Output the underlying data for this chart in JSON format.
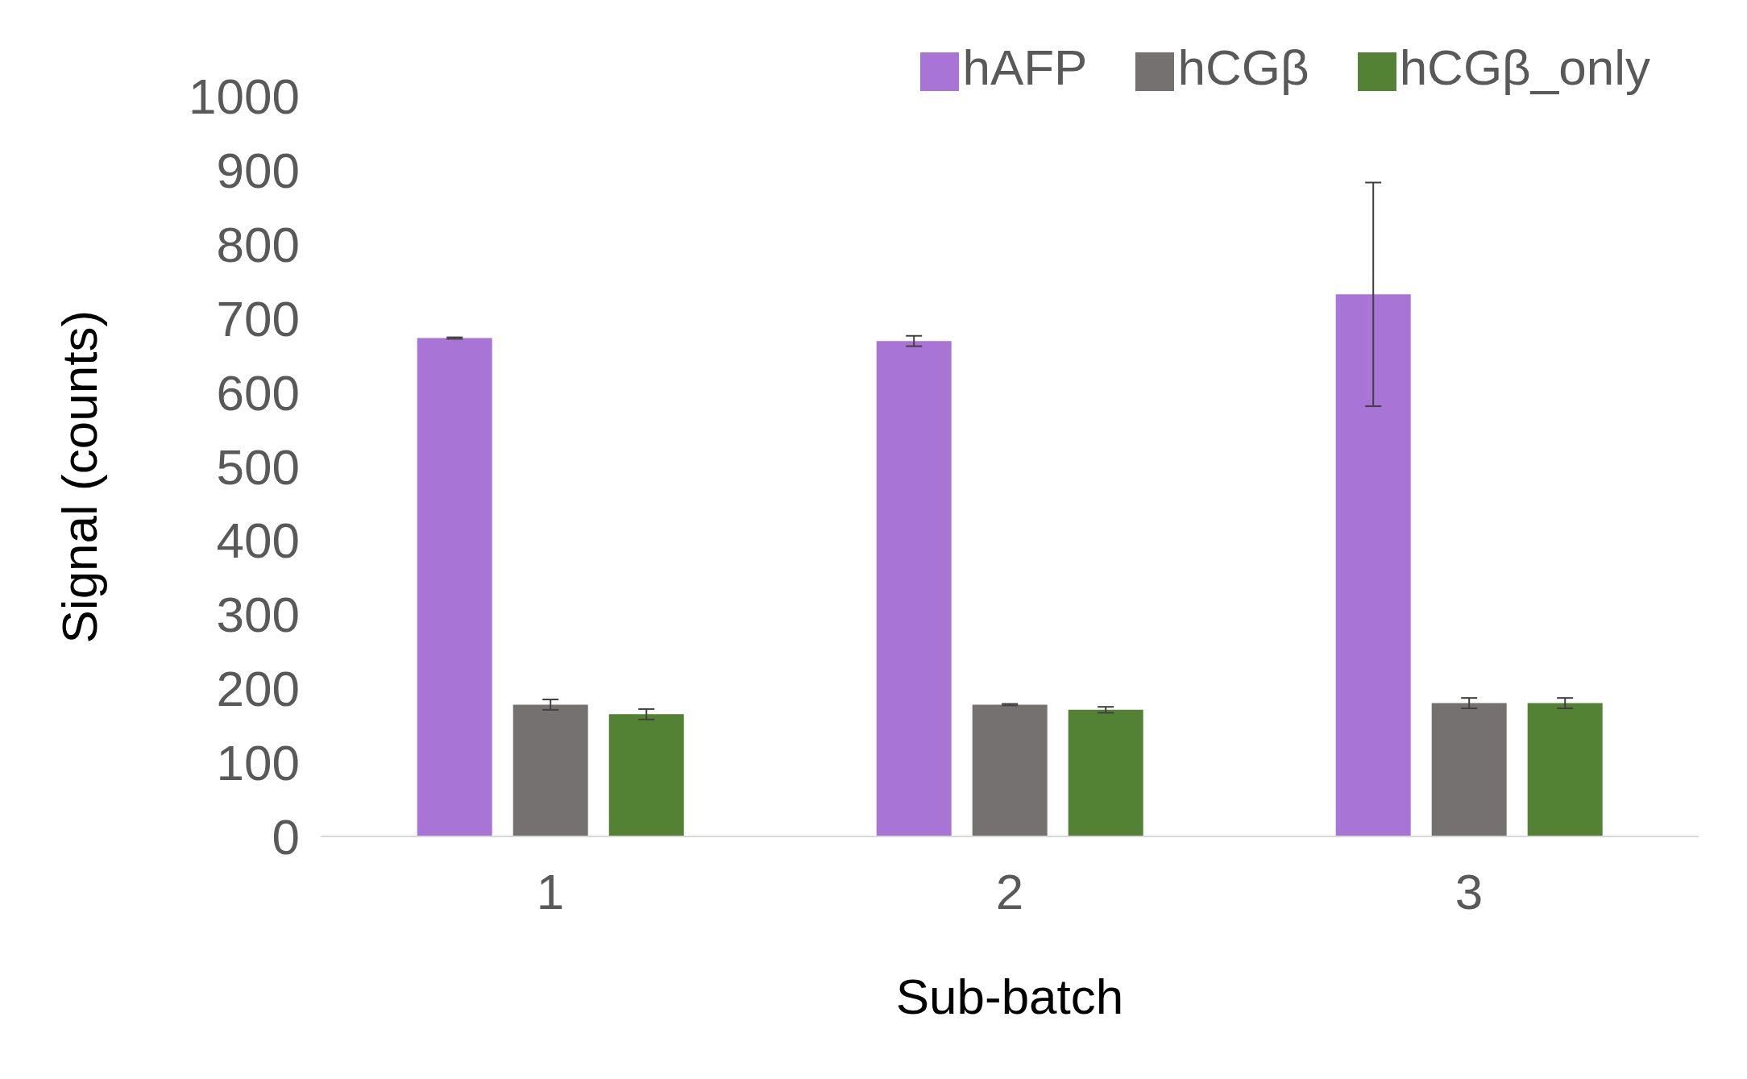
{
  "chart_data": {
    "type": "bar",
    "xlabel": "Sub-batch",
    "ylabel": "Signal (counts)",
    "categories": [
      "1",
      "2",
      "3"
    ],
    "series": [
      {
        "name": "hAFP",
        "color": "#a874d6",
        "values": [
          673,
          669,
          732
        ],
        "errors": [
          1,
          7,
          151
        ]
      },
      {
        "name": "hCGβ",
        "color": "#767171",
        "values": [
          178,
          178,
          180
        ],
        "errors": [
          7,
          1,
          7
        ]
      },
      {
        "name": "hCGβ_only",
        "color": "#548235",
        "values": [
          165,
          171,
          180
        ],
        "errors": [
          7,
          4,
          7
        ]
      }
    ],
    "ylim": [
      0,
      1000
    ],
    "yticks": [
      0,
      100,
      200,
      300,
      400,
      500,
      600,
      700,
      800,
      900,
      1000
    ],
    "legend": "top right"
  }
}
